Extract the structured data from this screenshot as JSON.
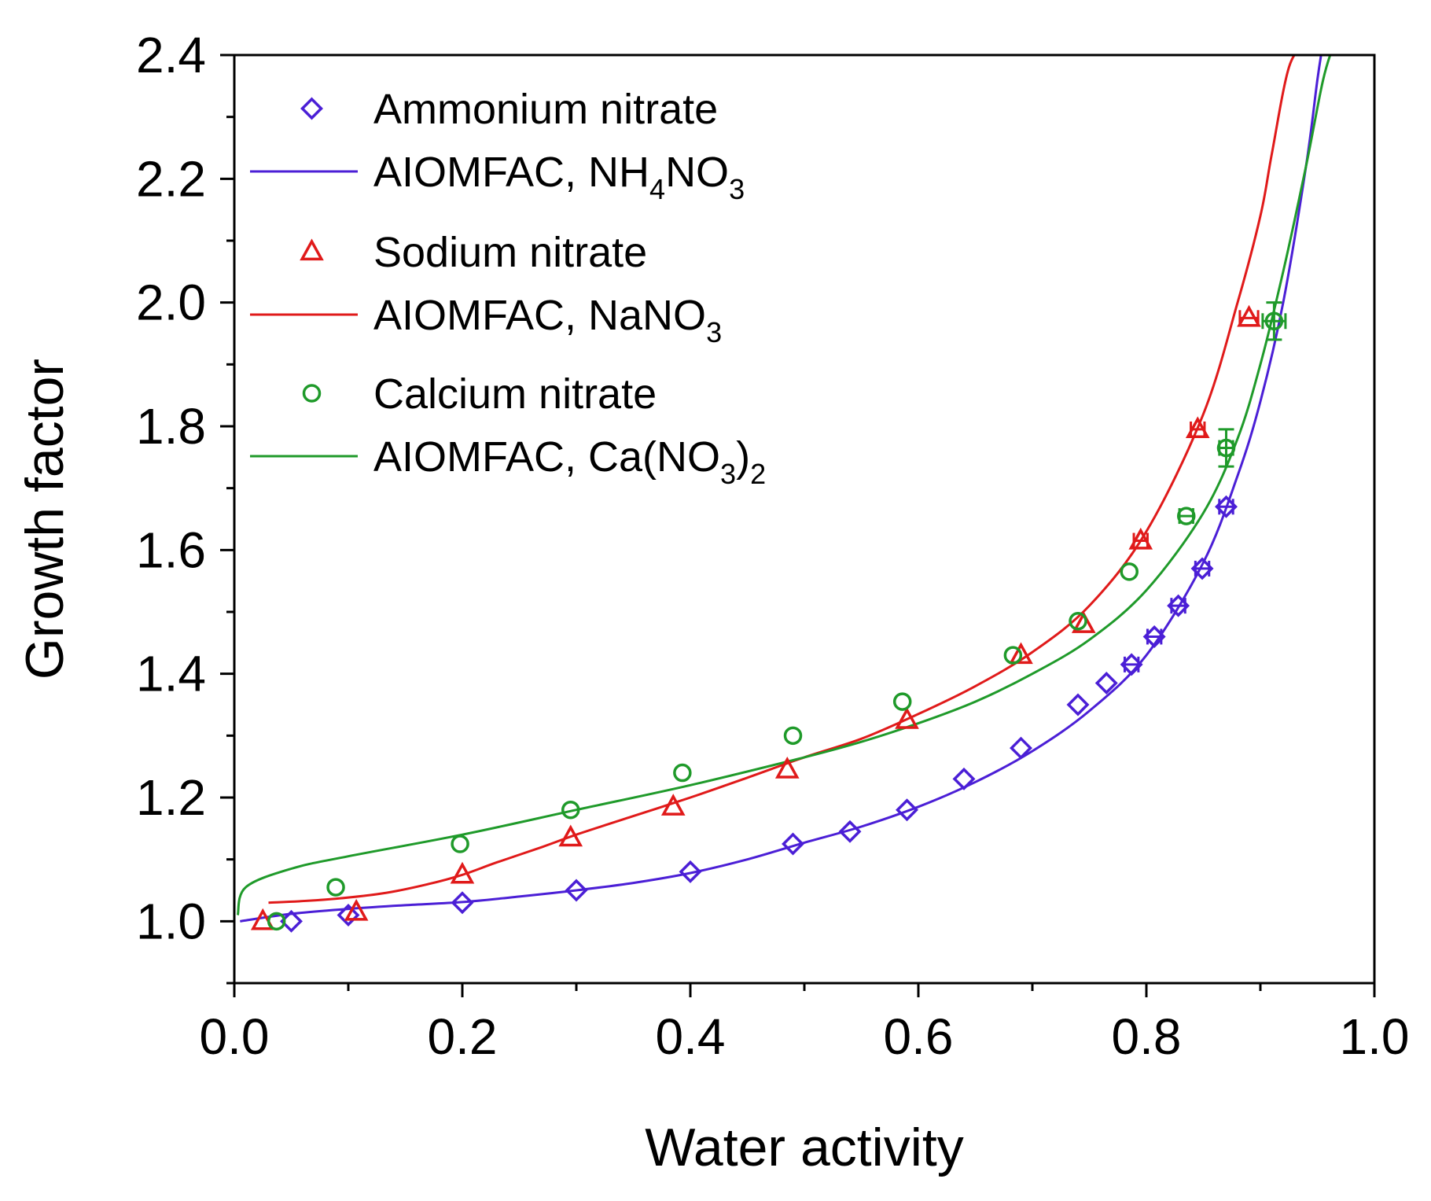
{
  "chart_data": {
    "type": "scatter",
    "title": "",
    "xlabel": "Water activity",
    "ylabel": "Growth factor",
    "xlim": [
      0.0,
      1.0
    ],
    "ylim": [
      0.9,
      2.4
    ],
    "x_ticks": [
      "0.0",
      "0.2",
      "0.4",
      "0.6",
      "0.8",
      "1.0"
    ],
    "x_tick_values": [
      0.0,
      0.2,
      0.4,
      0.6,
      0.8,
      1.0
    ],
    "y_ticks": [
      "1.0",
      "1.2",
      "1.4",
      "1.6",
      "1.8",
      "2.0",
      "2.2",
      "2.4"
    ],
    "y_tick_values": [
      1.0,
      1.2,
      1.4,
      1.6,
      1.8,
      2.0,
      2.2,
      2.4
    ],
    "legend_position": "top-left",
    "series": [
      {
        "name": "Ammonium nitrate",
        "kind": "markers",
        "marker": "diamond",
        "color": "#4b1fd6",
        "x": [
          0.05,
          0.1,
          0.2,
          0.3,
          0.4,
          0.49,
          0.54,
          0.59,
          0.64,
          0.69,
          0.74,
          0.765,
          0.787,
          0.807,
          0.828,
          0.849,
          0.87
        ],
        "y": [
          1.0,
          1.01,
          1.03,
          1.05,
          1.08,
          1.125,
          1.145,
          1.18,
          1.23,
          1.28,
          1.35,
          1.385,
          1.415,
          1.46,
          1.51,
          1.57,
          1.67
        ]
      },
      {
        "name": "AIOMFAC, NH4NO3",
        "legend_main": "AIOMFAC, NH",
        "legend_sub1": "4",
        "legend_mid": "NO",
        "legend_sub2": "3",
        "legend_tail": "",
        "kind": "line",
        "color": "#4b1fd6",
        "x": [
          0.005,
          0.05,
          0.1,
          0.15,
          0.2,
          0.25,
          0.3,
          0.35,
          0.4,
          0.45,
          0.5,
          0.55,
          0.6,
          0.65,
          0.7,
          0.75,
          0.8,
          0.85,
          0.88,
          0.9,
          0.92,
          0.94,
          0.95,
          0.955
        ],
        "y": [
          1.0,
          1.012,
          1.02,
          1.026,
          1.031,
          1.04,
          1.05,
          1.062,
          1.078,
          1.1,
          1.127,
          1.153,
          1.185,
          1.225,
          1.275,
          1.34,
          1.43,
          1.58,
          1.72,
          1.84,
          2.0,
          2.22,
          2.36,
          2.42
        ]
      },
      {
        "name": "Sodium nitrate",
        "kind": "markers",
        "marker": "triangle",
        "color": "#e01a1a",
        "x": [
          0.025,
          0.107,
          0.2,
          0.295,
          0.385,
          0.485,
          0.59,
          0.69,
          0.745,
          0.795,
          0.845,
          0.89
        ],
        "y": [
          1.0,
          1.015,
          1.075,
          1.135,
          1.185,
          1.245,
          1.325,
          1.43,
          1.48,
          1.615,
          1.795,
          1.975
        ]
      },
      {
        "name": "AIOMFAC, NaNO3",
        "legend_main": "AIOMFAC, NaNO",
        "legend_sub1": "3",
        "legend_mid": "",
        "legend_sub2": "",
        "legend_tail": "",
        "kind": "line",
        "color": "#e01a1a",
        "x": [
          0.03,
          0.08,
          0.13,
          0.17,
          0.2,
          0.23,
          0.27,
          0.3,
          0.35,
          0.4,
          0.45,
          0.5,
          0.55,
          0.6,
          0.65,
          0.7,
          0.75,
          0.8,
          0.85,
          0.88,
          0.9,
          0.91,
          0.925,
          0.94
        ],
        "y": [
          1.03,
          1.035,
          1.045,
          1.06,
          1.075,
          1.095,
          1.12,
          1.14,
          1.17,
          1.2,
          1.232,
          1.265,
          1.295,
          1.335,
          1.38,
          1.435,
          1.51,
          1.63,
          1.82,
          2.0,
          2.14,
          2.24,
          2.38,
          2.42
        ]
      },
      {
        "name": "Calcium nitrate",
        "kind": "markers",
        "marker": "circle",
        "color": "#1f9a2a",
        "x": [
          0.037,
          0.089,
          0.198,
          0.295,
          0.393,
          0.49,
          0.586,
          0.683,
          0.74,
          0.785,
          0.835,
          0.87,
          0.912
        ],
        "y": [
          1.0,
          1.055,
          1.125,
          1.18,
          1.24,
          1.3,
          1.355,
          1.43,
          1.485,
          1.565,
          1.655,
          1.765,
          1.97
        ]
      },
      {
        "name": "AIOMFAC, Ca(NO3)2",
        "legend_main": "AIOMFAC, Ca(NO",
        "legend_sub1": "3",
        "legend_mid": ")",
        "legend_sub2": "2",
        "legend_tail": "",
        "kind": "line",
        "color": "#1f9a2a",
        "x": [
          0.003,
          0.01,
          0.05,
          0.1,
          0.2,
          0.3,
          0.4,
          0.5,
          0.55,
          0.6,
          0.65,
          0.7,
          0.75,
          0.8,
          0.85,
          0.88,
          0.9,
          0.92,
          0.94,
          0.955,
          0.965
        ],
        "y": [
          1.01,
          1.055,
          1.085,
          1.105,
          1.14,
          1.18,
          1.22,
          1.265,
          1.29,
          1.32,
          1.355,
          1.4,
          1.455,
          1.535,
          1.66,
          1.78,
          1.9,
          2.05,
          2.22,
          2.36,
          2.42
        ]
      }
    ],
    "error_bars": [
      {
        "series": "Sodium nitrate",
        "x": 0.89,
        "y": 1.975,
        "dx": 0.008,
        "dy": 0
      },
      {
        "series": "Sodium nitrate",
        "x": 0.845,
        "y": 1.795,
        "dx": 0.006,
        "dy": 0
      },
      {
        "series": "Sodium nitrate",
        "x": 0.795,
        "y": 1.615,
        "dx": 0.006,
        "dy": 0
      },
      {
        "series": "Calcium nitrate",
        "x": 0.912,
        "y": 1.97,
        "dx": 0.01,
        "dy": 0.03
      },
      {
        "series": "Calcium nitrate",
        "x": 0.87,
        "y": 1.765,
        "dx": 0.006,
        "dy": 0.03
      },
      {
        "series": "Calcium nitrate",
        "x": 0.835,
        "y": 1.655,
        "dx": 0.006,
        "dy": 0
      },
      {
        "series": "Ammonium nitrate",
        "x": 0.87,
        "y": 1.67,
        "dx": 0.006,
        "dy": 0
      },
      {
        "series": "Ammonium nitrate",
        "x": 0.849,
        "y": 1.57,
        "dx": 0.006,
        "dy": 0
      },
      {
        "series": "Ammonium nitrate",
        "x": 0.828,
        "y": 1.51,
        "dx": 0.006,
        "dy": 0
      },
      {
        "series": "Ammonium nitrate",
        "x": 0.807,
        "y": 1.46,
        "dx": 0.006,
        "dy": 0
      },
      {
        "series": "Ammonium nitrate",
        "x": 0.787,
        "y": 1.415,
        "dx": 0.006,
        "dy": 0
      }
    ]
  }
}
